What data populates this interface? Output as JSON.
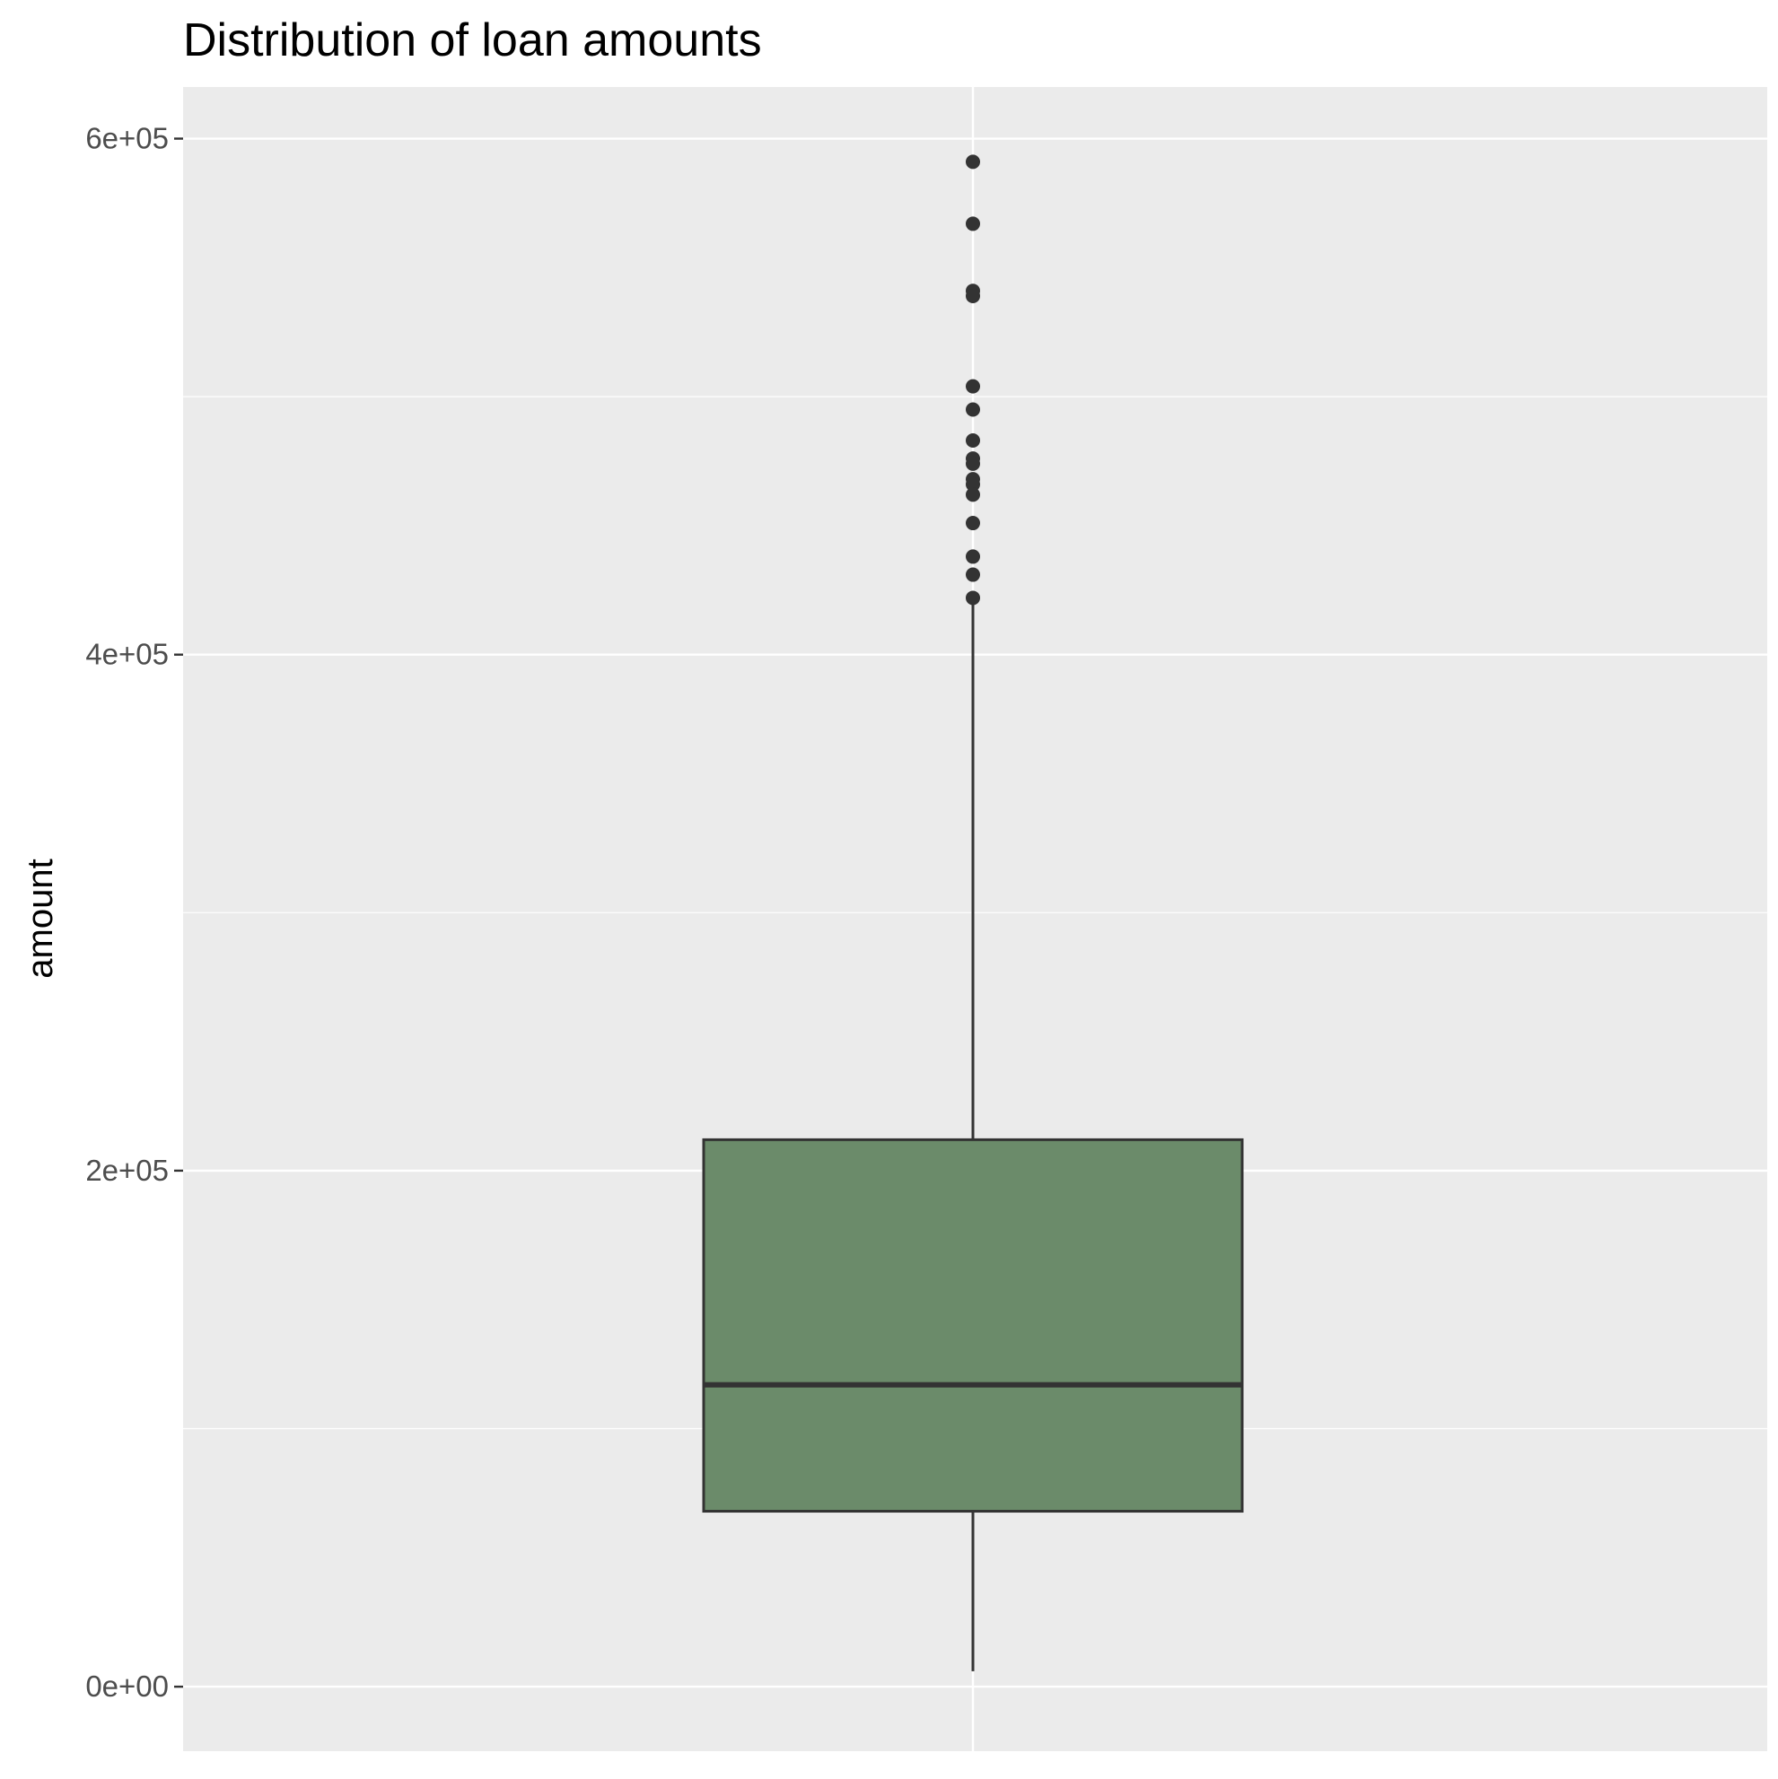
{
  "chart_data": {
    "type": "boxplot",
    "title": "Distribution of loan amounts",
    "xlabel": "",
    "ylabel": "amount",
    "ylim": [
      -25000,
      620000
    ],
    "y_ticks": [
      0,
      200000,
      400000,
      600000
    ],
    "y_tick_labels": [
      "0e+00",
      "2e+05",
      "4e+05",
      "6e+05"
    ],
    "y_minor_ticks": [
      100000,
      300000,
      500000
    ],
    "grid": true,
    "box": {
      "min": 6000,
      "q1": 68000,
      "median": 117000,
      "q3": 212000,
      "max": 422000,
      "fill_color": "#6b8b6a",
      "line_color": "#333333"
    },
    "outliers": [
      591000,
      567000,
      541000,
      539000,
      504000,
      495000,
      483000,
      476000,
      474000,
      468000,
      466000,
      462000,
      451000,
      438000,
      431000,
      422000
    ]
  }
}
